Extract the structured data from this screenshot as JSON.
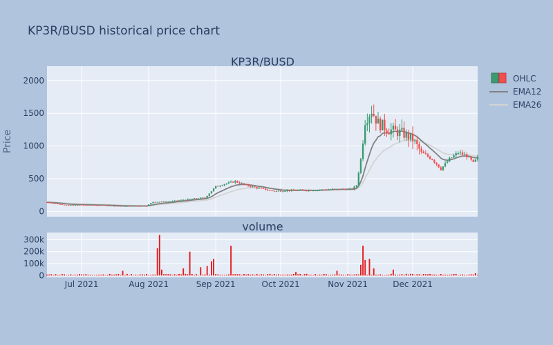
{
  "title": "KP3R/BUSD historical price chart",
  "colors": {
    "background": "#b0c4de",
    "plot_bg": "#e5ecf6",
    "grid": "#ffffff",
    "increasing": "#3d9970",
    "decreasing": "#ef4f4f",
    "ema12": "#808080",
    "ema26": "#d3d3d3",
    "volume": "#e31a1c"
  },
  "chart_data": [
    {
      "type": "candlestick",
      "title": "KP3R/BUSD",
      "ylabel": "Price",
      "ylim": [
        -80,
        2220
      ],
      "yticks": [
        0,
        500,
        1000,
        1500,
        2000
      ],
      "xlim": [
        "2021-06-15",
        "2021-12-31"
      ],
      "xticks": [
        {
          "date": "2021-07-01",
          "label": "Jul 2021"
        },
        {
          "date": "2021-08-01",
          "label": "Aug 2021"
        },
        {
          "date": "2021-09-01",
          "label": "Sep 2021"
        },
        {
          "date": "2021-10-01",
          "label": "Oct 2021"
        },
        {
          "date": "2021-11-01",
          "label": "Nov 2021"
        },
        {
          "date": "2021-12-01",
          "label": "Dec 2021"
        }
      ],
      "grid": true,
      "legend": {
        "placement": "top-right",
        "entries": [
          {
            "label": "OHLC",
            "kind": "candle"
          },
          {
            "label": "EMA12",
            "kind": "line",
            "color": "#808080"
          },
          {
            "label": "EMA26",
            "kind": "line",
            "color": "#d3d3d3"
          }
        ]
      },
      "price_path": [
        [
          "2021-06-15",
          140
        ],
        [
          "2021-06-20",
          115
        ],
        [
          "2021-06-25",
          95
        ],
        [
          "2021-07-01",
          100
        ],
        [
          "2021-07-10",
          95
        ],
        [
          "2021-07-20",
          80
        ],
        [
          "2021-07-31",
          85
        ],
        [
          "2021-08-03",
          145
        ],
        [
          "2021-08-10",
          150
        ],
        [
          "2021-08-20",
          190
        ],
        [
          "2021-08-27",
          210
        ],
        [
          "2021-09-01",
          380
        ],
        [
          "2021-09-05",
          420
        ],
        [
          "2021-09-10",
          460
        ],
        [
          "2021-09-15",
          400
        ],
        [
          "2021-09-20",
          360
        ],
        [
          "2021-09-28",
          310
        ],
        [
          "2021-10-05",
          320
        ],
        [
          "2021-10-15",
          325
        ],
        [
          "2021-10-25",
          340
        ],
        [
          "2021-11-03",
          340
        ],
        [
          "2021-11-05",
          400
        ],
        [
          "2021-11-07",
          800
        ],
        [
          "2021-11-09",
          1400
        ],
        [
          "2021-11-12",
          1550
        ],
        [
          "2021-11-15",
          1350
        ],
        [
          "2021-11-20",
          1250
        ],
        [
          "2021-11-26",
          1200
        ],
        [
          "2021-12-01",
          1100
        ],
        [
          "2021-12-05",
          900
        ],
        [
          "2021-12-10",
          800
        ],
        [
          "2021-12-14",
          650
        ],
        [
          "2021-12-18",
          800
        ],
        [
          "2021-12-22",
          900
        ],
        [
          "2021-12-26",
          850
        ],
        [
          "2021-12-29",
          740
        ],
        [
          "2021-12-31",
          820
        ]
      ]
    },
    {
      "type": "bar",
      "title": "volume",
      "ylim": [
        -15000,
        360000
      ],
      "yticks": [
        {
          "value": 0,
          "label": "0"
        },
        {
          "value": 100000,
          "label": "100k"
        },
        {
          "value": 200000,
          "label": "200k"
        },
        {
          "value": 300000,
          "label": "300k"
        }
      ],
      "spikes": [
        {
          "date": "2021-07-20",
          "value": 40000
        },
        {
          "date": "2021-08-05",
          "value": 230000
        },
        {
          "date": "2021-08-06",
          "value": 340000
        },
        {
          "date": "2021-08-07",
          "value": 50000
        },
        {
          "date": "2021-08-17",
          "value": 60000
        },
        {
          "date": "2021-08-20",
          "value": 200000
        },
        {
          "date": "2021-08-25",
          "value": 70000
        },
        {
          "date": "2021-08-28",
          "value": 80000
        },
        {
          "date": "2021-08-30",
          "value": 120000
        },
        {
          "date": "2021-08-31",
          "value": 140000
        },
        {
          "date": "2021-09-08",
          "value": 250000
        },
        {
          "date": "2021-10-08",
          "value": 30000
        },
        {
          "date": "2021-10-27",
          "value": 40000
        },
        {
          "date": "2021-11-07",
          "value": 90000
        },
        {
          "date": "2021-11-08",
          "value": 250000
        },
        {
          "date": "2021-11-09",
          "value": 130000
        },
        {
          "date": "2021-11-11",
          "value": 140000
        },
        {
          "date": "2021-11-13",
          "value": 60000
        },
        {
          "date": "2021-11-22",
          "value": 50000
        },
        {
          "date": "2021-12-30",
          "value": 20000
        }
      ]
    }
  ]
}
